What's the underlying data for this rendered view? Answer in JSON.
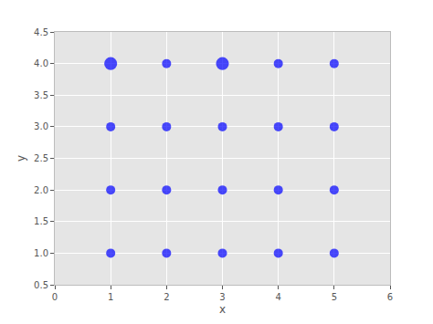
{
  "chart_data": {
    "type": "scatter",
    "x_label": "x",
    "y_label": "y",
    "x": [
      1,
      2,
      3,
      4,
      5,
      1,
      2,
      3,
      4,
      5,
      1,
      2,
      3,
      4,
      5,
      1,
      2,
      3,
      4,
      5
    ],
    "values": [
      4,
      4,
      4,
      4,
      4,
      3,
      3,
      3,
      3,
      3,
      2,
      2,
      2,
      2,
      2,
      1,
      1,
      1,
      1,
      1
    ],
    "sizes": [
      2,
      1,
      2,
      1,
      1,
      1,
      1,
      1,
      1,
      1,
      1,
      1,
      1,
      1,
      1,
      1,
      1,
      1,
      1,
      1
    ],
    "color": "#0000ff",
    "marker": "circle",
    "xlim": [
      0,
      6
    ],
    "xticks": [
      0,
      1,
      2,
      3,
      4,
      5,
      6
    ],
    "ylim": [
      0.5,
      4.5
    ],
    "yticks": [
      0.5,
      {
        "value": 1,
        "label": "1.0"
      },
      1.5,
      {
        "value": 2,
        "label": "2.0"
      },
      2.5,
      {
        "value": 3,
        "label": "3.0"
      },
      3.5,
      {
        "value": 4,
        "label": "4.0"
      },
      4.5
    ],
    "grid": true
  }
}
